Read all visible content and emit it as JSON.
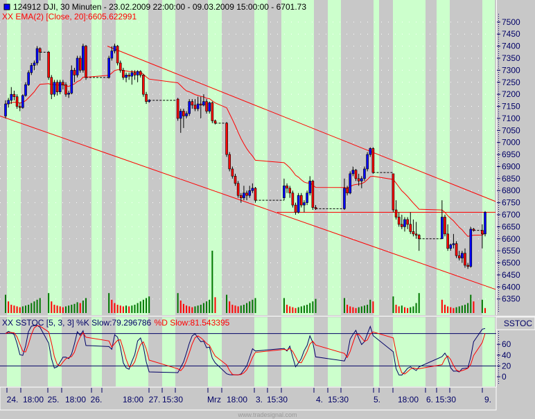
{
  "header": {
    "symbol_line": "124912  DJI, 30 Minuten - 23.02.2009 22:00:00 - 09.03.2009 15:00:00 - 6701.73",
    "indicator_line": "XX EMA(2) [Close, 20]:6605.622991"
  },
  "stoch": {
    "label_k": "XX SSTOC [5, 3, 3] %K Slow:79.296786",
    "label_d": "%D Slow:81.543395",
    "panel_name": "SSTOC",
    "axis_ticks": [
      "60",
      "40",
      "20",
      "0"
    ],
    "levels": [
      80,
      20
    ]
  },
  "footer": "www.tradesignal.com",
  "colors": {
    "background": "#c8c8c8",
    "session": "#ccffcc",
    "up": "#0000ff",
    "down": "#ff0000",
    "ema": "#ff0000",
    "k_line": "#000066",
    "d_line": "#ff0000",
    "volume_up": "#007700",
    "volume_down": "#ff0000"
  },
  "time_axis": [
    "24.",
    "18:00",
    "25.",
    "18:00",
    "26.",
    "18:00",
    "27.",
    "15:30",
    "Mrz",
    "18:00",
    "3.",
    "15:30",
    "4.",
    "15:30",
    "5.",
    "18:00",
    "6.",
    "15:30",
    "9."
  ],
  "chart_data": {
    "type": "candlestick",
    "price_ticks": [
      "7500",
      "7450",
      "7400",
      "7350",
      "7300",
      "7250",
      "7200",
      "7150",
      "7100",
      "7050",
      "7000",
      "6950",
      "6900",
      "6850",
      "6800",
      "6750",
      "6700",
      "6650",
      "6600",
      "6550",
      "6500",
      "6450",
      "6400",
      "6350"
    ],
    "ylim": [
      6300,
      7550
    ],
    "ema_period": 20,
    "horizontal_line": 6710,
    "channel_upper": {
      "start": 7400,
      "end": 6755
    },
    "channel_lower": {
      "start": 7110,
      "end": 6390
    },
    "candles": [
      [
        7110,
        7175,
        7100,
        7160,
        22
      ],
      [
        7160,
        7185,
        7145,
        7175,
        14
      ],
      [
        7175,
        7230,
        7160,
        7200,
        10
      ],
      [
        7200,
        7215,
        7175,
        7190,
        9
      ],
      [
        7190,
        7200,
        7140,
        7150,
        8
      ],
      [
        7150,
        7165,
        7130,
        7145,
        7
      ],
      [
        7145,
        7200,
        7140,
        7195,
        8
      ],
      [
        7195,
        7250,
        7190,
        7240,
        9
      ],
      [
        7240,
        7300,
        7235,
        7290,
        10
      ],
      [
        7290,
        7330,
        7280,
        7320,
        12
      ],
      [
        7320,
        7340,
        7300,
        7330,
        14
      ],
      [
        7330,
        7400,
        7320,
        7390,
        16
      ],
      [
        7390,
        7395,
        7340,
        7375,
        18
      ],
      null,
      null,
      [
        7375,
        7380,
        7260,
        7270,
        24
      ],
      [
        7270,
        7280,
        7180,
        7200,
        14
      ],
      [
        7200,
        7260,
        7190,
        7250,
        10
      ],
      [
        7250,
        7260,
        7195,
        7210,
        9
      ],
      [
        7210,
        7260,
        7200,
        7250,
        8
      ],
      [
        7250,
        7260,
        7220,
        7240,
        7
      ],
      [
        7240,
        7250,
        7190,
        7200,
        8
      ],
      [
        7200,
        7215,
        7185,
        7205,
        9
      ],
      [
        7205,
        7320,
        7200,
        7300,
        10
      ],
      [
        7300,
        7310,
        7250,
        7280,
        11
      ],
      [
        7280,
        7360,
        7270,
        7350,
        13
      ],
      [
        7350,
        7360,
        7290,
        7300,
        12
      ],
      [
        7300,
        7410,
        7290,
        7400,
        15
      ],
      [
        7400,
        7405,
        7260,
        7270,
        18
      ],
      null,
      null,
      null,
      null,
      null,
      null,
      null,
      [
        7270,
        7360,
        7265,
        7350,
        24
      ],
      [
        7350,
        7400,
        7340,
        7380,
        16
      ],
      [
        7380,
        7410,
        7370,
        7400,
        12
      ],
      [
        7400,
        7405,
        7320,
        7330,
        10
      ],
      [
        7330,
        7340,
        7290,
        7300,
        9
      ],
      [
        7300,
        7310,
        7260,
        7270,
        8
      ],
      [
        7270,
        7290,
        7250,
        7280,
        9
      ],
      [
        7280,
        7290,
        7260,
        7275,
        8
      ],
      [
        7275,
        7300,
        7240,
        7290,
        9
      ],
      [
        7290,
        7300,
        7260,
        7280,
        10
      ],
      [
        7280,
        7300,
        7250,
        7295,
        12
      ],
      [
        7295,
        7300,
        7270,
        7280,
        14
      ],
      [
        7280,
        7285,
        7190,
        7200,
        16
      ],
      [
        7200,
        7210,
        7160,
        7170,
        18
      ],
      [
        7170,
        7180,
        7165,
        7175,
        20
      ],
      null,
      null,
      null,
      null,
      null,
      null,
      null,
      null,
      null,
      [
        7180,
        7185,
        7090,
        7100,
        24
      ],
      [
        7100,
        7140,
        7040,
        7130,
        15
      ],
      [
        7130,
        7140,
        7060,
        7110,
        11
      ],
      [
        7110,
        7130,
        7100,
        7120,
        9
      ],
      [
        7120,
        7180,
        7110,
        7170,
        8
      ],
      [
        7170,
        7180,
        7140,
        7155,
        7
      ],
      [
        7155,
        7180,
        7130,
        7140,
        8
      ],
      [
        7140,
        7190,
        7130,
        7160,
        9
      ],
      [
        7160,
        7190,
        7100,
        7155,
        10
      ],
      [
        7155,
        7200,
        7150,
        7170,
        12
      ],
      [
        7170,
        7180,
        7120,
        7130,
        14
      ],
      [
        7130,
        7170,
        7120,
        7165,
        16
      ],
      [
        7165,
        7170,
        7080,
        7090,
        75
      ],
      [
        7090,
        7095,
        7075,
        7080,
        19
      ],
      null,
      null,
      null,
      [
        7080,
        7085,
        6940,
        6950,
        22
      ],
      [
        6950,
        6960,
        6880,
        6890,
        14
      ],
      [
        6890,
        6900,
        6850,
        6860,
        10
      ],
      [
        6860,
        6870,
        6820,
        6830,
        9
      ],
      [
        6830,
        6840,
        6770,
        6780,
        8
      ],
      [
        6780,
        6790,
        6750,
        6770,
        9
      ],
      [
        6770,
        6820,
        6760,
        6790,
        10
      ],
      [
        6790,
        6800,
        6760,
        6780,
        12
      ],
      [
        6780,
        6820,
        6770,
        6800,
        14
      ],
      [
        6800,
        6830,
        6790,
        6810,
        16
      ],
      [
        6810,
        6815,
        6750,
        6760,
        18
      ],
      null,
      null,
      null,
      null,
      null,
      null,
      null,
      null,
      null,
      [
        6770,
        6850,
        6760,
        6820,
        18
      ],
      [
        6820,
        6830,
        6790,
        6810,
        10
      ],
      [
        6810,
        6820,
        6770,
        6790,
        8
      ],
      [
        6790,
        6800,
        6730,
        6740,
        7
      ],
      [
        6740,
        6750,
        6700,
        6710,
        6
      ],
      [
        6710,
        6790,
        6705,
        6780,
        7
      ],
      [
        6780,
        6790,
        6730,
        6740,
        8
      ],
      [
        6740,
        6760,
        6710,
        6750,
        9
      ],
      [
        6750,
        6800,
        6740,
        6790,
        10
      ],
      [
        6790,
        6860,
        6780,
        6840,
        12
      ],
      [
        6840,
        6845,
        6720,
        6730,
        14
      ],
      [
        6730,
        6740,
        6720,
        6725,
        17
      ],
      null,
      null,
      null,
      null,
      null,
      null,
      null,
      null,
      null,
      [
        6725,
        6850,
        6720,
        6810,
        18
      ],
      [
        6810,
        6820,
        6780,
        6790,
        10
      ],
      [
        6790,
        6880,
        6785,
        6870,
        8
      ],
      [
        6870,
        6900,
        6860,
        6885,
        7
      ],
      [
        6885,
        6890,
        6840,
        6850,
        6
      ],
      [
        6850,
        6870,
        6820,
        6840,
        7
      ],
      [
        6840,
        6860,
        6810,
        6850,
        8
      ],
      [
        6850,
        6900,
        6840,
        6890,
        9
      ],
      [
        6890,
        6960,
        6880,
        6950,
        10
      ],
      [
        6950,
        6980,
        6940,
        6975,
        16
      ],
      [
        6975,
        6980,
        6870,
        6875,
        14
      ],
      null,
      null,
      null,
      null,
      null,
      null,
      [
        6870,
        6870,
        6710,
        6720,
        20
      ],
      [
        6720,
        6760,
        6680,
        6690,
        10
      ],
      [
        6690,
        6710,
        6650,
        6660,
        8
      ],
      [
        6660,
        6700,
        6640,
        6650,
        9
      ],
      [
        6650,
        6690,
        6630,
        6680,
        7
      ],
      [
        6680,
        6690,
        6640,
        6660,
        6
      ],
      [
        6660,
        6710,
        6620,
        6630,
        7
      ],
      [
        6630,
        6680,
        6610,
        6620,
        8
      ],
      [
        6620,
        6670,
        6600,
        6615,
        12
      ],
      [
        6615,
        6620,
        6550,
        6600,
        24
      ],
      null,
      null,
      null,
      null,
      null,
      null,
      null,
      [
        6600,
        6760,
        6600,
        6690,
        16
      ],
      [
        6690,
        6700,
        6610,
        6620,
        10
      ],
      [
        6620,
        6660,
        6550,
        6560,
        8
      ],
      [
        6560,
        6580,
        6550,
        6575,
        7
      ],
      [
        6575,
        6620,
        6560,
        6580,
        6
      ],
      [
        6580,
        6590,
        6520,
        6530,
        7
      ],
      [
        6530,
        6550,
        6510,
        6520,
        8
      ],
      [
        6520,
        6550,
        6500,
        6540,
        9
      ],
      [
        6540,
        6560,
        6480,
        6490,
        10
      ],
      [
        6490,
        6500,
        6475,
        6485,
        12
      ],
      [
        6485,
        6650,
        6480,
        6640,
        22
      ],
      [
        6640,
        6645,
        6630,
        6635,
        14
      ],
      null,
      null,
      [
        6635,
        6660,
        6560,
        6620,
        16
      ],
      [
        6620,
        6715,
        6610,
        6710,
        6
      ]
    ]
  }
}
